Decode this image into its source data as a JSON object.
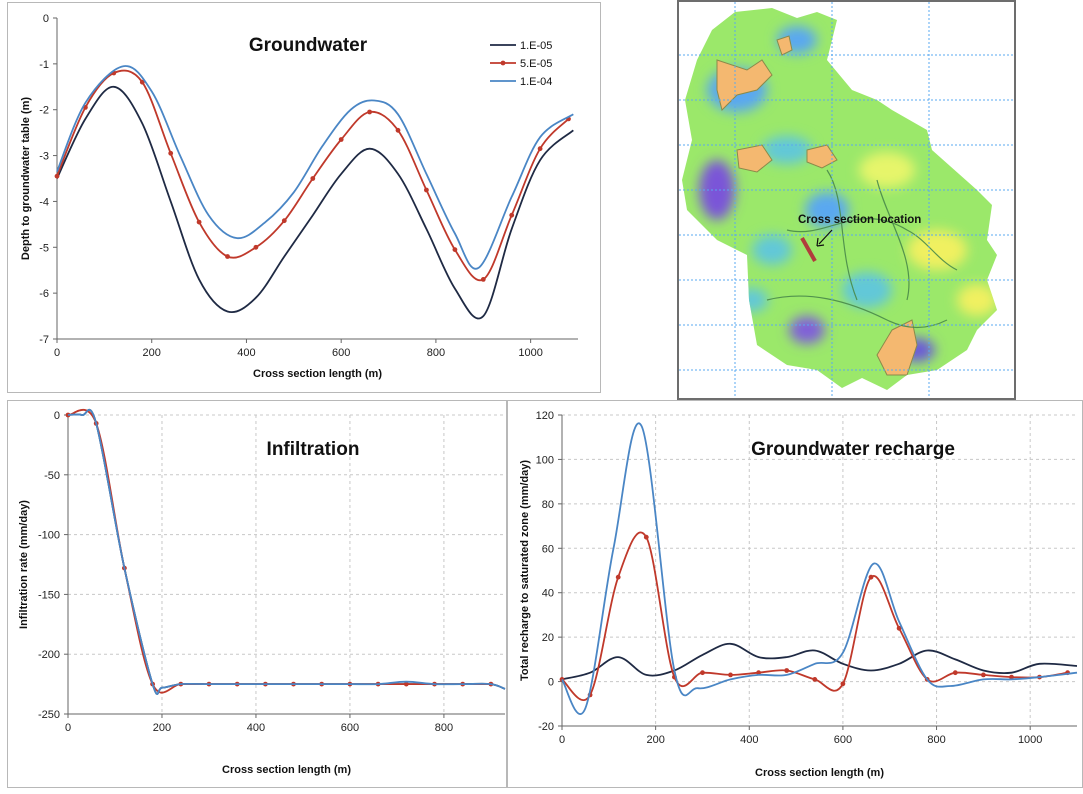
{
  "colors": {
    "series_1": "#1f2a44",
    "series_2": "#c0392b",
    "series_3": "#4a86c5",
    "grid": "#c8c8c8"
  },
  "chart_data": [
    {
      "type": "line",
      "title": "Groundwater",
      "xlabel": "Cross section length (m)",
      "ylabel": "Depth to groundwater table (m)",
      "xlim": [
        0,
        1100
      ],
      "ylim": [
        -7,
        0
      ],
      "xticks": [
        0,
        200,
        400,
        600,
        800,
        1000
      ],
      "yticks": [
        0,
        -1,
        -2,
        -3,
        -4,
        -5,
        -6,
        -7
      ],
      "grid": false,
      "legend": "top-right",
      "series": [
        {
          "name": "1.E-05",
          "markers": false,
          "x": [
            0,
            60,
            120,
            180,
            240,
            300,
            360,
            420,
            480,
            540,
            600,
            660,
            720,
            780,
            840,
            900,
            960,
            1020,
            1090
          ],
          "y": [
            -3.5,
            -2.2,
            -1.5,
            -2.3,
            -4.0,
            -5.7,
            -6.4,
            -6.1,
            -5.2,
            -4.3,
            -3.4,
            -2.85,
            -3.4,
            -4.6,
            -5.9,
            -6.5,
            -4.6,
            -3.1,
            -2.45
          ]
        },
        {
          "name": "5.E-05",
          "markers": true,
          "x": [
            0,
            60,
            120,
            180,
            240,
            300,
            360,
            420,
            480,
            540,
            600,
            660,
            720,
            780,
            840,
            900,
            960,
            1020,
            1080
          ],
          "y": [
            -3.45,
            -1.95,
            -1.2,
            -1.4,
            -2.95,
            -4.45,
            -5.2,
            -5.0,
            -4.42,
            -3.5,
            -2.65,
            -2.05,
            -2.45,
            -3.75,
            -5.05,
            -5.7,
            -4.3,
            -2.85,
            -2.2
          ]
        },
        {
          "name": "1.E-04",
          "markers": false,
          "x": [
            0,
            60,
            140,
            200,
            260,
            320,
            380,
            440,
            500,
            560,
            620,
            670,
            720,
            780,
            840,
            890,
            960,
            1020,
            1090
          ],
          "y": [
            -3.35,
            -1.85,
            -1.05,
            -1.6,
            -3.0,
            -4.3,
            -4.8,
            -4.45,
            -3.8,
            -2.8,
            -2.0,
            -1.8,
            -2.1,
            -3.4,
            -4.7,
            -5.45,
            -3.9,
            -2.6,
            -2.1
          ]
        }
      ]
    },
    {
      "type": "line",
      "title": "Infiltration",
      "xlabel": "Cross section length (m)",
      "ylabel": "Infiltration rate (mm/day)",
      "xlim": [
        0,
        930
      ],
      "ylim": [
        -250,
        0
      ],
      "xticks": [
        0,
        200,
        400,
        600,
        800
      ],
      "yticks": [
        0,
        -50,
        -100,
        -150,
        -200,
        -250
      ],
      "grid": true,
      "series": [
        {
          "name": "1.E-05",
          "markers": false,
          "x": [
            0,
            30,
            60,
            120,
            180,
            200,
            240,
            300,
            360,
            420,
            480,
            540,
            600,
            660,
            720,
            780,
            840,
            900,
            930
          ],
          "y": [
            0,
            0,
            -7,
            -128,
            -225,
            -228,
            -225,
            -225,
            -225,
            -225,
            -225,
            -225,
            -225,
            -225,
            -225,
            -225,
            -225,
            -225,
            -229
          ]
        },
        {
          "name": "5.E-05",
          "markers": true,
          "x": [
            0,
            60,
            120,
            180,
            240,
            300,
            360,
            420,
            480,
            540,
            600,
            660,
            720,
            780,
            840,
            900
          ],
          "y": [
            0,
            -7,
            -128,
            -225,
            -225,
            -225,
            -225,
            -225,
            -225,
            -225,
            -225,
            -225,
            -225,
            -225,
            -225,
            -225
          ]
        },
        {
          "name": "1.E-04",
          "markers": false,
          "x": [
            0,
            30,
            60,
            120,
            180,
            200,
            240,
            300,
            360,
            420,
            480,
            540,
            600,
            660,
            720,
            780,
            840,
            900,
            930
          ],
          "y": [
            0,
            0,
            -7,
            -128,
            -225,
            -228,
            -225,
            -225,
            -225,
            -225,
            -225,
            -225,
            -225,
            -225,
            -223,
            -225,
            -225,
            -225,
            -229
          ]
        }
      ]
    },
    {
      "type": "line",
      "title": "Groundwater recharge",
      "xlabel": "Cross section length (m)",
      "ylabel": "Total recharge to saturated zone (mm/day)",
      "xlim": [
        0,
        1100
      ],
      "ylim": [
        -20,
        120
      ],
      "xticks": [
        0,
        200,
        400,
        600,
        800,
        1000
      ],
      "yticks": [
        120,
        100,
        80,
        60,
        40,
        20,
        0,
        -20
      ],
      "grid": true,
      "series": [
        {
          "name": "1.E-05",
          "markers": false,
          "x": [
            0,
            60,
            120,
            180,
            240,
            300,
            360,
            420,
            480,
            540,
            600,
            660,
            720,
            780,
            840,
            900,
            960,
            1020,
            1100
          ],
          "y": [
            1,
            4,
            11,
            3,
            5,
            12,
            17,
            11,
            11,
            14,
            8,
            5,
            8,
            14,
            10,
            5,
            4,
            8,
            7
          ]
        },
        {
          "name": "5.E-05",
          "markers": true,
          "x": [
            0,
            60,
            120,
            180,
            240,
            300,
            360,
            420,
            480,
            540,
            600,
            660,
            720,
            780,
            840,
            900,
            960,
            1020,
            1080
          ],
          "y": [
            1,
            -6,
            47,
            65,
            2,
            4,
            3,
            4,
            5,
            1,
            -1,
            47,
            24,
            1,
            4,
            3,
            2,
            2,
            4
          ]
        },
        {
          "name": "1.E-04",
          "markers": false,
          "x": [
            0,
            50,
            110,
            170,
            240,
            290,
            360,
            420,
            480,
            540,
            600,
            665,
            720,
            780,
            830,
            900,
            960,
            1020,
            1100
          ],
          "y": [
            1,
            -12,
            60,
            115,
            5,
            -3,
            1,
            3,
            3,
            8,
            13,
            53,
            27,
            1,
            -2,
            1,
            1,
            2,
            4
          ]
        }
      ]
    }
  ],
  "map": {
    "label": "Cross section location"
  }
}
